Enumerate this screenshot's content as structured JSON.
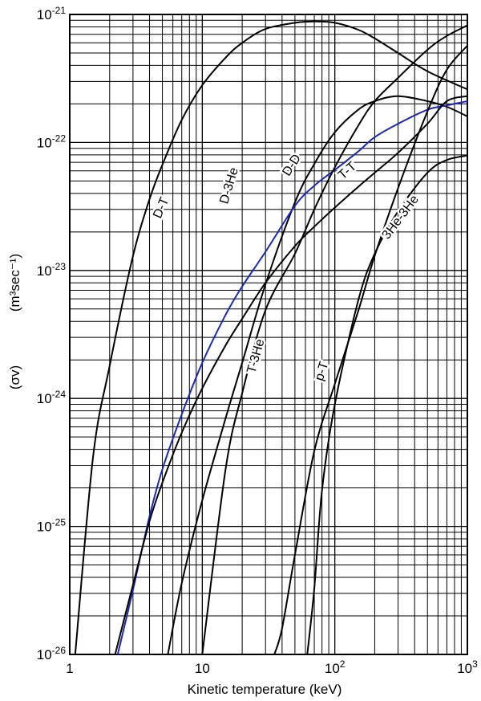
{
  "chart_data": {
    "type": "line",
    "title": "",
    "xlabel": "Kinetic temperature (keV)",
    "ylabel_symbol": "(σv)",
    "ylabel_units": "(m³sec⁻¹)",
    "x_scale": "log",
    "y_scale": "log",
    "xlim": [
      1,
      1000
    ],
    "ylim": [
      1e-26,
      1e-21
    ],
    "grid": true,
    "x_tick_values": [
      1,
      10,
      100,
      1000
    ],
    "x_ticks": [
      {
        "base": "1",
        "exp": ""
      },
      {
        "base": "10",
        "exp": ""
      },
      {
        "base": "10",
        "exp": "2"
      },
      {
        "base": "10",
        "exp": "3"
      }
    ],
    "y_tick_values": [
      1e-26,
      1e-25,
      1e-24,
      1e-23,
      1e-22,
      1e-21
    ],
    "y_ticks": [
      {
        "base": "10",
        "exp": "-26"
      },
      {
        "base": "10",
        "exp": "-25"
      },
      {
        "base": "10",
        "exp": "-24"
      },
      {
        "base": "10",
        "exp": "-23"
      },
      {
        "base": "10",
        "exp": "-22"
      },
      {
        "base": "10",
        "exp": "-21"
      }
    ],
    "series": [
      {
        "name": "D-T",
        "color": "#000000",
        "label_at": {
          "x": 5.2,
          "y": 3e-23
        },
        "x": [
          1.1,
          1.5,
          2,
          3,
          4,
          5,
          7,
          10,
          15,
          20,
          30,
          50,
          70,
          100,
          150,
          200,
          300,
          500,
          1000
        ],
        "y": [
          1e-26,
          3.5e-25,
          1.8e-24,
          1.3e-23,
          3.6e-23,
          6.7e-23,
          1.5e-22,
          2.8e-22,
          4.6e-22,
          6e-22,
          7.7e-22,
          8.6e-22,
          8.8e-22,
          8.6e-22,
          7.6e-22,
          6.5e-22,
          5e-22,
          3.6e-22,
          2.6e-22
        ]
      },
      {
        "name": "D-3He",
        "color": "#000000",
        "label_at": {
          "x": 17,
          "y": 4.5e-23
        },
        "x": [
          5.5,
          7,
          10,
          15,
          20,
          30,
          50,
          70,
          100,
          150,
          200,
          300,
          500,
          700,
          1000
        ],
        "y": [
          1e-26,
          3.6e-26,
          1.6e-25,
          7e-25,
          1.9e-24,
          7.8e-24,
          3.4e-23,
          6.8e-23,
          1.2e-22,
          1.8e-22,
          2.1e-22,
          2.3e-22,
          2.1e-22,
          1.9e-22,
          1.6e-22
        ]
      },
      {
        "name": "D-D",
        "color": "#1a29b8",
        "label_at": {
          "x": 50,
          "y": 6.4e-23
        },
        "x": [
          2.3,
          3,
          4,
          5,
          7,
          10,
          15,
          20,
          30,
          50,
          70,
          100,
          150,
          200,
          300,
          500,
          700,
          1000
        ],
        "y": [
          1e-26,
          3.2e-26,
          1.2e-25,
          2.8e-25,
          7.5e-25,
          1.9e-24,
          4.5e-24,
          7.5e-24,
          1.4e-23,
          3.2e-23,
          4.6e-23,
          6.1e-23,
          8.5e-23,
          1.1e-22,
          1.4e-22,
          1.8e-22,
          1.95e-22,
          2.1e-22
        ]
      },
      {
        "name": "T-T",
        "color": "#000000",
        "label_at": {
          "x": 130,
          "y": 5.7e-23
        },
        "x": [
          2.2,
          3,
          4,
          5,
          7,
          10,
          15,
          20,
          30,
          50,
          70,
          100,
          150,
          200,
          300,
          500,
          700,
          1000
        ],
        "y": [
          1e-26,
          3.5e-26,
          1.1e-25,
          2.2e-25,
          5.4e-25,
          1.2e-24,
          2.6e-24,
          4.2e-24,
          8e-24,
          1.55e-23,
          2.2e-23,
          3.1e-23,
          4.5e-23,
          5.8e-23,
          8.3e-23,
          1.4e-22,
          2.1e-22,
          2.3e-22
        ]
      },
      {
        "name": "T-3He",
        "color": "#000000",
        "label_at": {
          "x": 27,
          "y": 2.1e-24
        },
        "x": [
          10,
          15,
          20,
          30,
          50,
          70,
          100,
          150,
          200,
          300,
          500,
          700,
          1000
        ],
        "y": [
          1e-26,
          2.8e-25,
          1.1e-24,
          4.9e-24,
          1.35e-23,
          3e-23,
          6.4e-23,
          1.35e-22,
          2.1e-22,
          3.2e-22,
          5.3e-22,
          6.8e-22,
          8.2e-22
        ]
      },
      {
        "name": "p-T",
        "color": "#000000",
        "label_at": {
          "x": 85,
          "y": 1.6e-24
        },
        "x": [
          35,
          40,
          50,
          70,
          100,
          150,
          200,
          300,
          500,
          700,
          1000
        ],
        "y": [
          1e-26,
          1.6e-26,
          6e-26,
          3.9e-25,
          1.3e-24,
          4.8e-24,
          1.3e-23,
          4.4e-23,
          1.75e-22,
          3.7e-22,
          5.7e-22
        ]
      },
      {
        "name": "3He-3He",
        "color": "#000000",
        "label_at": {
          "x": 330,
          "y": 2.5e-23
        },
        "x": [
          62,
          70,
          80,
          100,
          150,
          200,
          300,
          500,
          700,
          1000
        ],
        "y": [
          1e-26,
          3.3e-26,
          1.9e-25,
          9e-25,
          5.8e-24,
          1.35e-23,
          2.9e-23,
          5.8e-23,
          7.3e-23,
          7.9e-23
        ]
      }
    ]
  }
}
